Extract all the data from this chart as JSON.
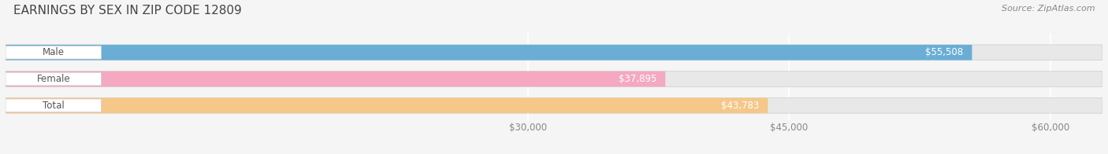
{
  "title": "EARNINGS BY SEX IN ZIP CODE 12809",
  "categories": [
    "Male",
    "Female",
    "Total"
  ],
  "values": [
    55508,
    37895,
    43783
  ],
  "bar_colors": [
    "#6aaed6",
    "#f4a9c0",
    "#f5c88a"
  ],
  "value_labels": [
    "$55,508",
    "$37,895",
    "$43,783"
  ],
  "label_text_colors": [
    "#6aaed6",
    "#f4a9c0",
    "#f5c88a"
  ],
  "xmin": 0,
  "xmax": 63000,
  "data_min": 30000,
  "data_max": 60000,
  "xticks": [
    30000,
    45000,
    60000
  ],
  "xtick_labels": [
    "$30,000",
    "$45,000",
    "$60,000"
  ],
  "source_text": "Source: ZipAtlas.com",
  "bg_color": "#f5f5f5",
  "bar_bg_color": "#e8e8e8",
  "title_fontsize": 11,
  "tick_fontsize": 8.5,
  "label_fontsize": 8.5,
  "value_fontsize": 8.5,
  "source_fontsize": 8,
  "bar_height": 0.58,
  "bar_gap": 0.42,
  "value_label_inside_color": "#ffffff",
  "value_label_outside_color": "#666666"
}
